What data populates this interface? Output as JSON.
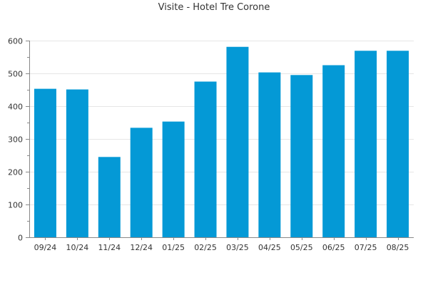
{
  "chart_data": {
    "type": "bar",
    "title": "Visite - Hotel Tre Corone",
    "categories": [
      "09/24",
      "10/24",
      "11/24",
      "12/24",
      "01/25",
      "02/25",
      "03/25",
      "04/25",
      "05/25",
      "06/25",
      "07/25",
      "08/25"
    ],
    "values": [
      453,
      451,
      245,
      334,
      353,
      475,
      581,
      503,
      495,
      525,
      569,
      569
    ],
    "xlabel": "",
    "ylabel": "",
    "ylim": [
      0,
      600
    ],
    "yticks": [
      0,
      100,
      200,
      300,
      400,
      500,
      600
    ],
    "grid": true,
    "legend": "none",
    "bar_color": "#0499d6",
    "grid_color": "#e6e6e6",
    "axis_color": "#888888"
  }
}
